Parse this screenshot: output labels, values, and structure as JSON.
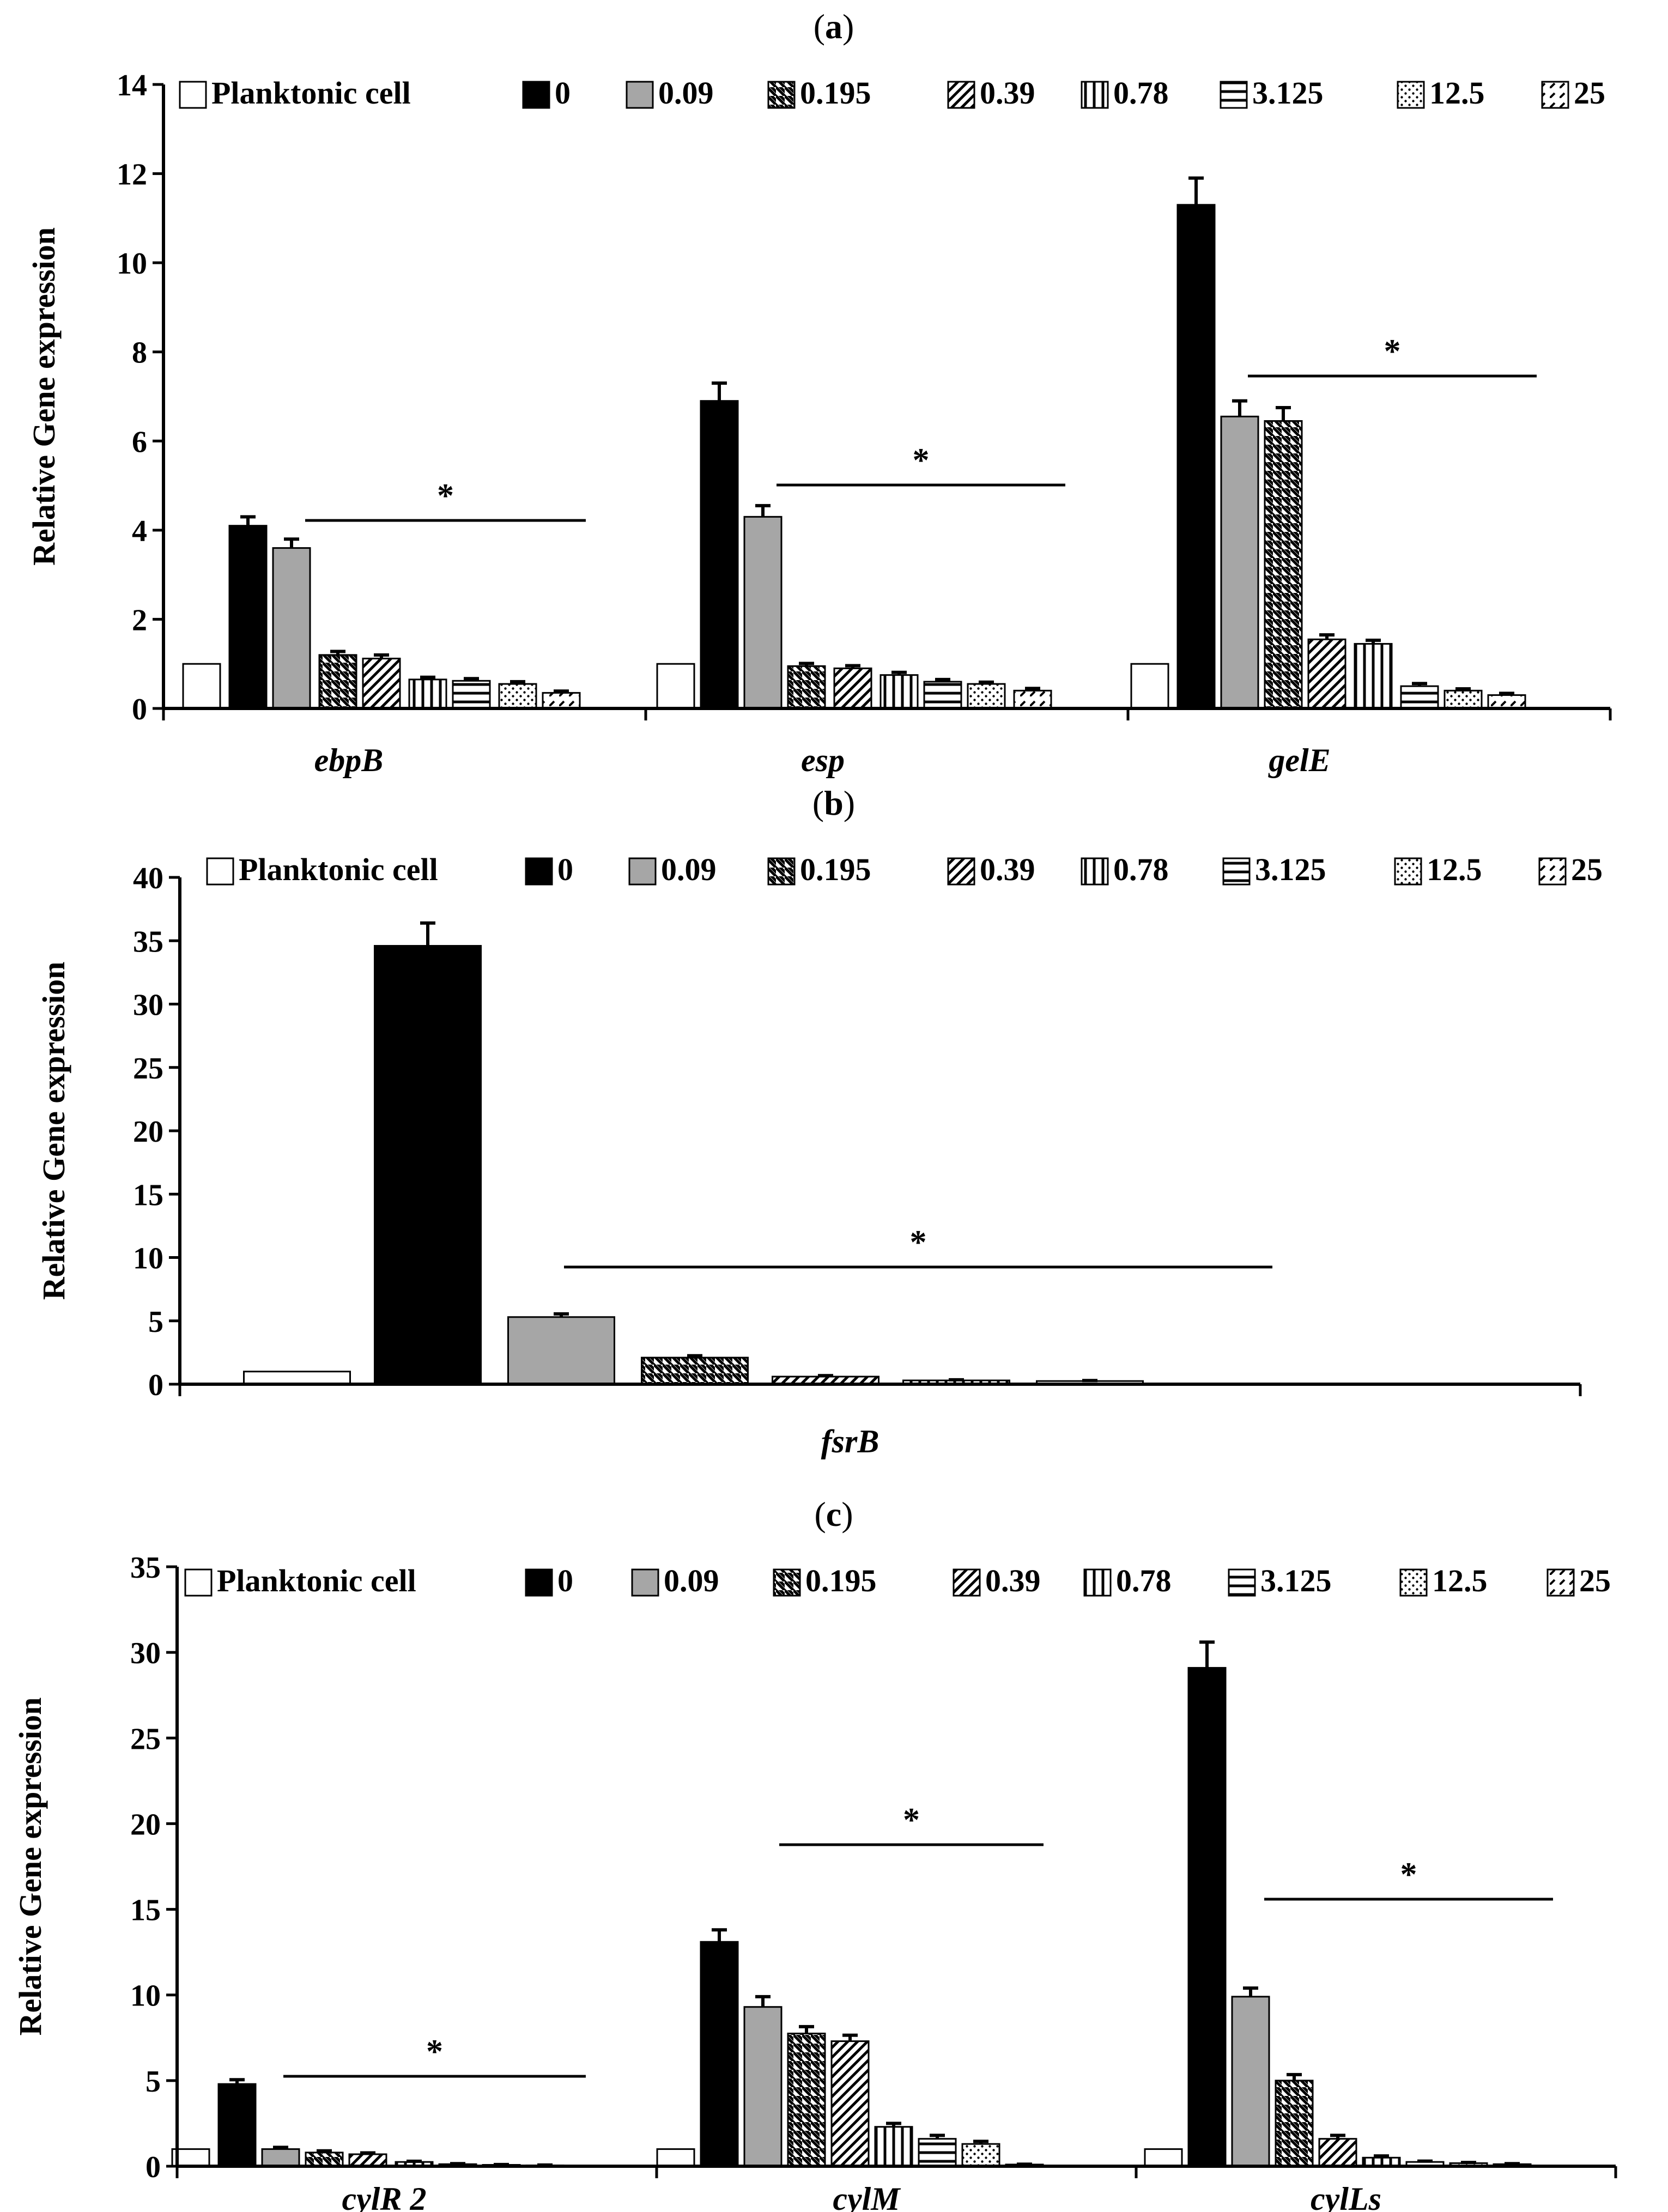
{
  "legend_labels": [
    "Planktonic cell",
    "0",
    "0.09",
    "0.195",
    "0.39",
    "0.78",
    "3.125",
    "12.5",
    "25"
  ],
  "ylabel": "Relative Gene expression",
  "significance_marker": "*",
  "chart_data": [
    {
      "panel": "(a)",
      "type": "bar",
      "categories": [
        "ebpB",
        "esp",
        "gelE"
      ],
      "ylim": [
        0,
        14
      ],
      "yticks": [
        0,
        2,
        4,
        6,
        8,
        10,
        12,
        14
      ],
      "ylabel": "Relative Gene expression",
      "series": [
        {
          "name": "Planktonic cell",
          "values": [
            1,
            1,
            1
          ],
          "errors": [
            0,
            0,
            0
          ]
        },
        {
          "name": "0",
          "values": [
            4.1,
            6.9,
            11.3
          ],
          "errors": [
            0.2,
            0.4,
            0.6
          ]
        },
        {
          "name": "0.09",
          "values": [
            3.6,
            4.3,
            6.55
          ],
          "errors": [
            0.2,
            0.25,
            0.35
          ]
        },
        {
          "name": "0.195",
          "values": [
            1.2,
            0.95,
            6.45
          ],
          "errors": [
            0.08,
            0.06,
            0.3
          ]
        },
        {
          "name": "0.39",
          "values": [
            1.12,
            0.9,
            1.55
          ],
          "errors": [
            0.08,
            0.06,
            0.1
          ]
        },
        {
          "name": "0.78",
          "values": [
            0.65,
            0.75,
            1.45
          ],
          "errors": [
            0.05,
            0.06,
            0.08
          ]
        },
        {
          "name": "3.125",
          "values": [
            0.62,
            0.6,
            0.5
          ],
          "errors": [
            0.05,
            0.05,
            0.06
          ]
        },
        {
          "name": "12.5",
          "values": [
            0.55,
            0.55,
            0.4
          ],
          "errors": [
            0.05,
            0.04,
            0.04
          ]
        },
        {
          "name": "25",
          "values": [
            0.35,
            0.4,
            0.3
          ],
          "errors": [
            0.04,
            0.05,
            0.04
          ]
        }
      ]
    },
    {
      "panel": "(b)",
      "type": "bar",
      "categories": [
        "fsrB"
      ],
      "ylim": [
        0,
        40
      ],
      "yticks": [
        0,
        5,
        10,
        15,
        20,
        25,
        30,
        35,
        40
      ],
      "ylabel": "Relative Gene expression",
      "series": [
        {
          "name": "Planktonic cell",
          "values": [
            1
          ],
          "errors": [
            0
          ]
        },
        {
          "name": "0",
          "values": [
            34.6
          ],
          "errors": [
            1.8
          ]
        },
        {
          "name": "0.09",
          "values": [
            5.3
          ],
          "errors": [
            0.25
          ]
        },
        {
          "name": "0.195",
          "values": [
            2.1
          ],
          "errors": [
            0.15
          ]
        },
        {
          "name": "0.39",
          "values": [
            0.6
          ],
          "errors": [
            0.08
          ]
        },
        {
          "name": "0.78",
          "values": [
            0.3
          ],
          "errors": [
            0.05
          ]
        },
        {
          "name": "3.125",
          "values": [
            0.25
          ],
          "errors": [
            0.04
          ]
        },
        {
          "name": "12.5",
          "values": [
            0
          ],
          "errors": [
            0
          ]
        },
        {
          "name": "25",
          "values": [
            0
          ],
          "errors": [
            0
          ]
        }
      ]
    },
    {
      "panel": "(c)",
      "type": "bar",
      "categories": [
        "cylR 2",
        "cylM",
        "cylLs"
      ],
      "ylim": [
        0,
        35
      ],
      "yticks": [
        0,
        5,
        10,
        15,
        20,
        25,
        30,
        35
      ],
      "ylabel": "Relative Gene expression",
      "series": [
        {
          "name": "Planktonic cell",
          "values": [
            1,
            1,
            1
          ],
          "errors": [
            0,
            0,
            0
          ]
        },
        {
          "name": "0",
          "values": [
            4.8,
            13.1,
            29.1
          ],
          "errors": [
            0.25,
            0.7,
            1.5
          ]
        },
        {
          "name": "0.09",
          "values": [
            1.0,
            9.3,
            9.9
          ],
          "errors": [
            0.1,
            0.6,
            0.5
          ]
        },
        {
          "name": "0.195",
          "values": [
            0.8,
            7.75,
            5.0
          ],
          "errors": [
            0.1,
            0.4,
            0.35
          ]
        },
        {
          "name": "0.39",
          "values": [
            0.7,
            7.3,
            1.6
          ],
          "errors": [
            0.08,
            0.35,
            0.2
          ]
        },
        {
          "name": "0.78",
          "values": [
            0.25,
            2.3,
            0.5
          ],
          "errors": [
            0.04,
            0.2,
            0.1
          ]
        },
        {
          "name": "3.125",
          "values": [
            0.12,
            1.6,
            0.25
          ],
          "errors": [
            0.03,
            0.2,
            0.05
          ]
        },
        {
          "name": "12.5",
          "values": [
            0.08,
            1.3,
            0.18
          ],
          "errors": [
            0.02,
            0.15,
            0.04
          ]
        },
        {
          "name": "25",
          "values": [
            0.05,
            0.1,
            0.12
          ],
          "errors": [
            0.02,
            0.02,
            0.03
          ]
        }
      ]
    }
  ]
}
